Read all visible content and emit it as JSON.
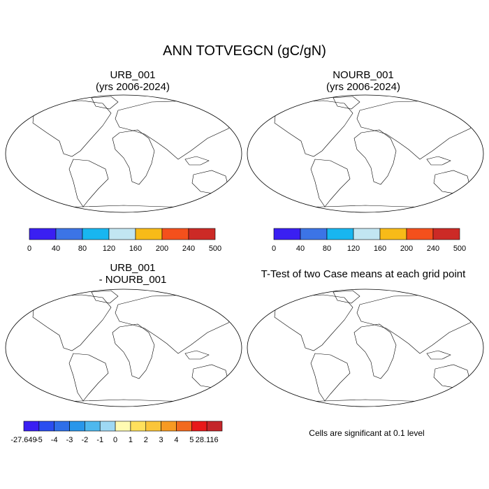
{
  "figure": {
    "title": "ANN TOTVEGCN (gC/gN)",
    "panels": [
      {
        "id": "urb",
        "title_line1": "URB_001",
        "title_line2": "(yrs 2006-2024)"
      },
      {
        "id": "nourb",
        "title_line1": "NOURB_001",
        "title_line2": "(yrs 2006-2024)"
      },
      {
        "id": "diff",
        "title_line1": "URB_001",
        "title_line2": "- NOURB_001"
      },
      {
        "id": "ttest",
        "title_line1": "T-Test of two Case means at each grid point",
        "title_line2": ""
      }
    ],
    "note": "Cells are significant at 0.1 level"
  },
  "chart_data": [
    {
      "type": "map",
      "name": "URB_001",
      "colorbar": {
        "colors": [
          "#3a1ff2",
          "#3c74e6",
          "#18b6f0",
          "#c2e6f2",
          "#f8bb18",
          "#f4501c",
          "#cc2a26"
        ],
        "ticks": [
          "0",
          "40",
          "80",
          "120",
          "160",
          "200",
          "240",
          "500"
        ]
      }
    },
    {
      "type": "map",
      "name": "NOURB_001",
      "colorbar": {
        "colors": [
          "#3a1ff2",
          "#3c74e6",
          "#18b6f0",
          "#c2e6f2",
          "#f8bb18",
          "#f4501c",
          "#cc2a26"
        ],
        "ticks": [
          "0",
          "40",
          "80",
          "120",
          "160",
          "200",
          "240",
          "500"
        ]
      }
    },
    {
      "type": "map",
      "name": "URB_001 - NOURB_001",
      "colorbar": {
        "colors": [
          "#3a1ff2",
          "#2a4ef0",
          "#2f6fe8",
          "#2896ea",
          "#4eb8ee",
          "#9ed8f4",
          "#fffbb2",
          "#ffe05c",
          "#fbc53a",
          "#f79a22",
          "#f26a1e",
          "#e8191a",
          "#c4262a"
        ],
        "ticks": [
          "-27.649",
          "-5",
          "-4",
          "-3",
          "-2",
          "-1",
          "0",
          "1",
          "2",
          "3",
          "4",
          "5",
          "28.116"
        ]
      }
    },
    {
      "type": "map",
      "name": "T-Test",
      "significance_color": "#e8191a"
    }
  ]
}
